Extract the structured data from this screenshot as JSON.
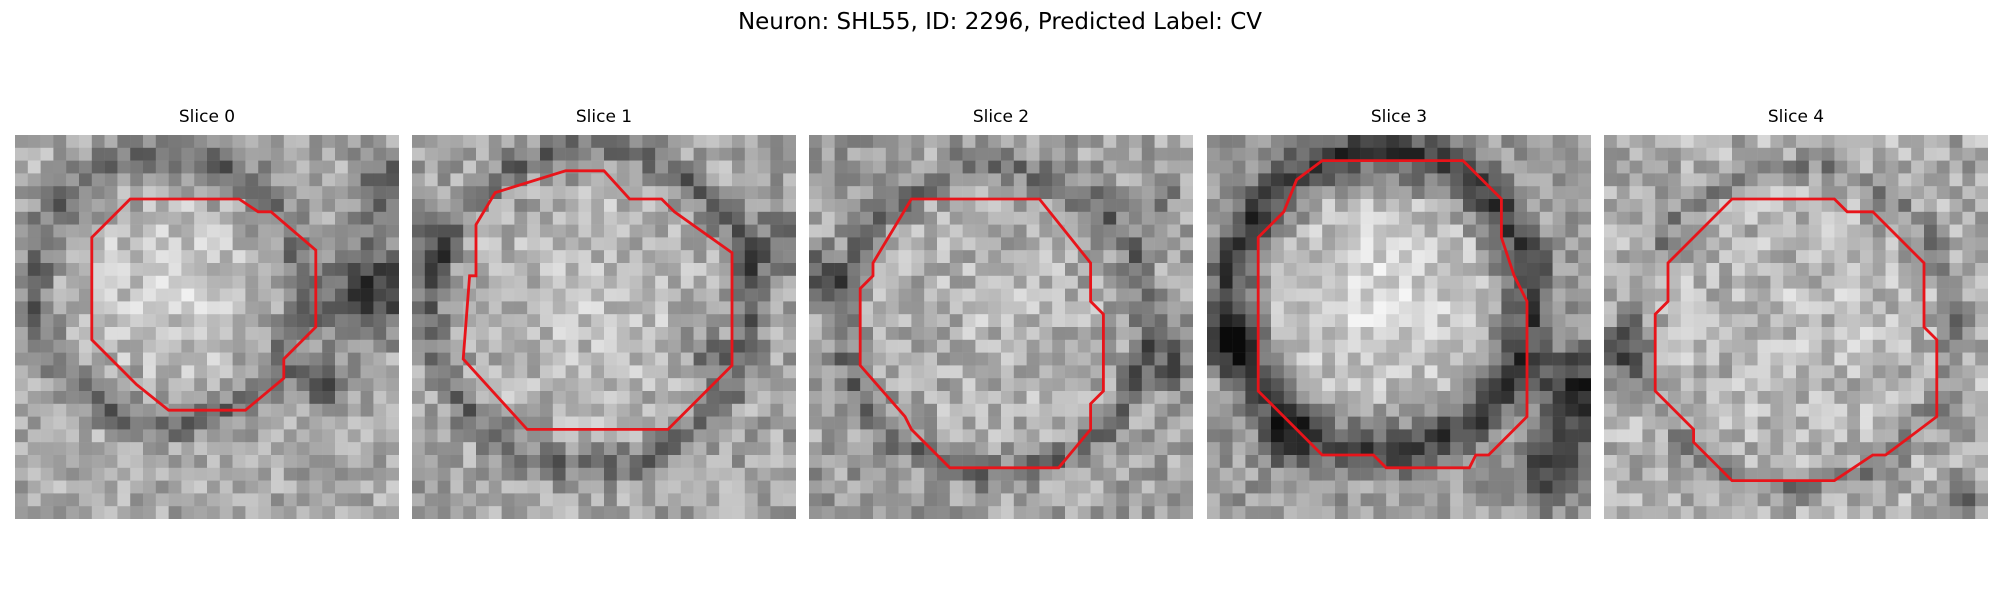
{
  "figure": {
    "title": "Neuron: SHL55, ID: 2296, Predicted Label: CV",
    "contour_color": "#e8141a"
  },
  "panels": [
    {
      "title": "Slice 0"
    },
    {
      "title": "Slice 1"
    },
    {
      "title": "Slice 2"
    },
    {
      "title": "Slice 3"
    },
    {
      "title": "Slice 4"
    }
  ]
}
